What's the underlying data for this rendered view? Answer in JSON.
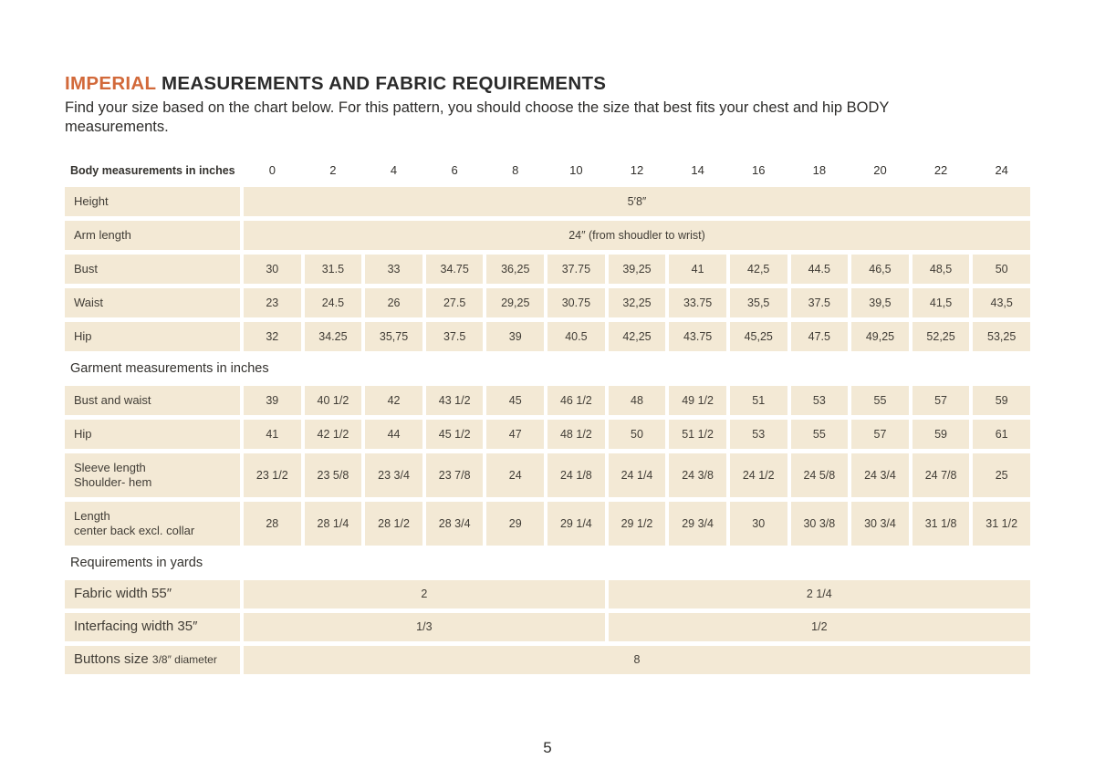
{
  "page": {
    "title_highlight": "IMPERIAL",
    "title_rest": " MEASUREMENTS AND FABRIC REQUIREMENTS",
    "subtitle": "Find your size based on the chart below. For this pattern, you should choose the size that best fits your chest and hip BODY measurements.",
    "page_number": "5"
  },
  "colors": {
    "accent_orange": "#d2693a",
    "cell_beige": "#f3e9d5",
    "text_dark": "#413d36"
  },
  "table": {
    "header_label": "Body measurements in inches",
    "sizes": [
      "0",
      "2",
      "4",
      "6",
      "8",
      "10",
      "12",
      "14",
      "16",
      "18",
      "20",
      "22",
      "24"
    ],
    "body_rows": [
      {
        "label": "Height",
        "type": "span",
        "span_value": "5′8″"
      },
      {
        "label": "Arm length",
        "type": "span",
        "span_value": "24″ (from shoudler to wrist)"
      },
      {
        "label": "Bust",
        "type": "cells",
        "values": [
          "30",
          "31.5",
          "33",
          "34.75",
          "36,25",
          "37.75",
          "39,25",
          "41",
          "42,5",
          "44.5",
          "46,5",
          "48,5",
          "50"
        ]
      },
      {
        "label": "Waist",
        "type": "cells",
        "values": [
          "23",
          "24.5",
          "26",
          "27.5",
          "29,25",
          "30.75",
          "32,25",
          "33.75",
          "35,5",
          "37.5",
          "39,5",
          "41,5",
          "43,5"
        ]
      },
      {
        "label": "Hip",
        "type": "cells",
        "values": [
          "32",
          "34.25",
          "35,75",
          "37.5",
          "39",
          "40.5",
          "42,25",
          "43.75",
          "45,25",
          "47.5",
          "49,25",
          "52,25",
          "53,25"
        ]
      }
    ],
    "garment_section_label": "Garment measurements in inches",
    "garment_rows": [
      {
        "label": "Bust and waist",
        "type": "cells",
        "values": [
          "39",
          "40 1/2",
          "42",
          "43 1/2",
          "45",
          "46 1/2",
          "48",
          "49 1/2",
          "51",
          "53",
          "55",
          "57",
          "59"
        ]
      },
      {
        "label": "Hip",
        "type": "cells",
        "values": [
          "41",
          "42 1/2",
          "44",
          "45 1/2",
          "47",
          "48 1/2",
          "50",
          "51 1/2",
          "53",
          "55",
          "57",
          "59",
          "61"
        ]
      },
      {
        "label": "Sleeve length",
        "label2": "Shoulder- hem",
        "type": "cells",
        "values": [
          "23 1/2",
          "23 5/8",
          "23 3/4",
          "23 7/8",
          "24",
          "24 1/8",
          "24 1/4",
          "24 3/8",
          "24 1/2",
          "24 5/8",
          "24 3/4",
          "24 7/8",
          "25"
        ]
      },
      {
        "label": "Length",
        "label2": "center back excl. collar",
        "type": "cells",
        "values": [
          "28",
          "28 1/4",
          "28 1/2",
          "28 3/4",
          "29",
          "29 1/4",
          "29 1/2",
          "29 3/4",
          "30",
          "30 3/8",
          "30 3/4",
          "31 1/8",
          "31 1/2"
        ]
      }
    ],
    "requirements_section_label": "Requirements in yards",
    "requirement_rows": [
      {
        "label": "Fabric width 55″",
        "type": "two-span",
        "value_left": "2",
        "value_right": "2 1/4"
      },
      {
        "label": "Interfacing width 35″",
        "type": "two-span",
        "value_left": "1/3",
        "value_right": "1/2"
      },
      {
        "label": "Buttons size",
        "label_small": "3/8″ diameter",
        "type": "span",
        "span_value": "8"
      }
    ]
  }
}
